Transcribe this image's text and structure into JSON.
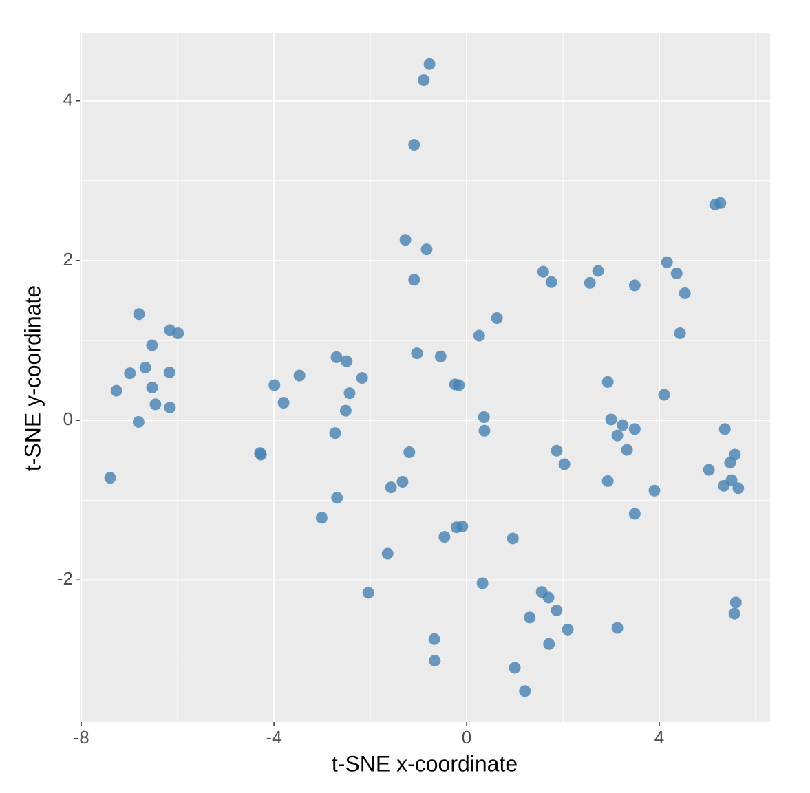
{
  "chart_data": {
    "type": "scatter",
    "x_label": "t-SNE x-coordinate",
    "y_label": "t-SNE y-coordinate",
    "color": "#4682b4",
    "grid": true,
    "xlim": [
      -8.03,
      6.3
    ],
    "ylim": [
      -3.78,
      4.85
    ],
    "xticks": [
      -8,
      -4,
      0,
      4
    ],
    "yticks": [
      -2,
      0,
      2,
      4
    ],
    "x": [
      -0.77,
      -0.89,
      -1.09,
      5.16,
      5.27,
      -1.27,
      -0.83,
      4.16,
      1.59,
      2.73,
      4.36,
      1.76,
      2.56,
      3.49,
      -1.09,
      4.53,
      -6.8,
      0.63,
      -6.16,
      -5.99,
      4.43,
      0.26,
      -6.53,
      -1.03,
      -0.54,
      -2.7,
      -2.49,
      -6.67,
      -6.99,
      -6.17,
      -3.47,
      -2.17,
      2.93,
      -3.99,
      -0.24,
      -0.16,
      -6.53,
      -7.27,
      -2.43,
      4.1,
      -3.8,
      -6.46,
      -6.16,
      -2.51,
      0.36,
      3.0,
      -6.81,
      3.24,
      3.49,
      5.36,
      0.37,
      -2.73,
      3.13,
      3.33,
      1.87,
      -1.19,
      -4.29,
      -4.27,
      5.57,
      5.47,
      2.03,
      5.03,
      -7.4,
      5.5,
      2.93,
      -1.33,
      5.34,
      -1.57,
      5.64,
      3.9,
      -2.69,
      3.49,
      -3.01,
      -0.09,
      -0.21,
      -0.46,
      0.96,
      -1.64,
      0.33,
      -2.04,
      1.56,
      1.7,
      5.59,
      1.87,
      5.56,
      1.31,
      2.1,
      3.13,
      -0.67,
      1.71,
      -0.66,
      1.0,
      1.21
    ],
    "y": [
      4.46,
      4.26,
      3.45,
      2.7,
      2.72,
      2.26,
      2.14,
      1.98,
      1.86,
      1.87,
      1.84,
      1.73,
      1.72,
      1.69,
      1.76,
      1.59,
      1.33,
      1.28,
      1.13,
      1.09,
      1.09,
      1.06,
      0.94,
      0.84,
      0.8,
      0.79,
      0.74,
      0.66,
      0.59,
      0.6,
      0.56,
      0.53,
      0.48,
      0.44,
      0.45,
      0.44,
      0.41,
      0.37,
      0.34,
      0.32,
      0.22,
      0.2,
      0.16,
      0.12,
      0.04,
      0.01,
      -0.02,
      -0.06,
      -0.11,
      -0.11,
      -0.13,
      -0.16,
      -0.19,
      -0.37,
      -0.38,
      -0.4,
      -0.41,
      -0.43,
      -0.43,
      -0.53,
      -0.55,
      -0.62,
      -0.72,
      -0.75,
      -0.76,
      -0.77,
      -0.82,
      -0.84,
      -0.85,
      -0.88,
      -0.97,
      -1.17,
      -1.22,
      -1.33,
      -1.34,
      -1.46,
      -1.48,
      -1.67,
      -2.04,
      -2.16,
      -2.15,
      -2.22,
      -2.28,
      -2.38,
      -2.42,
      -2.47,
      -2.62,
      -2.6,
      -2.74,
      -2.8,
      -3.01,
      -3.1,
      -3.39
    ]
  }
}
